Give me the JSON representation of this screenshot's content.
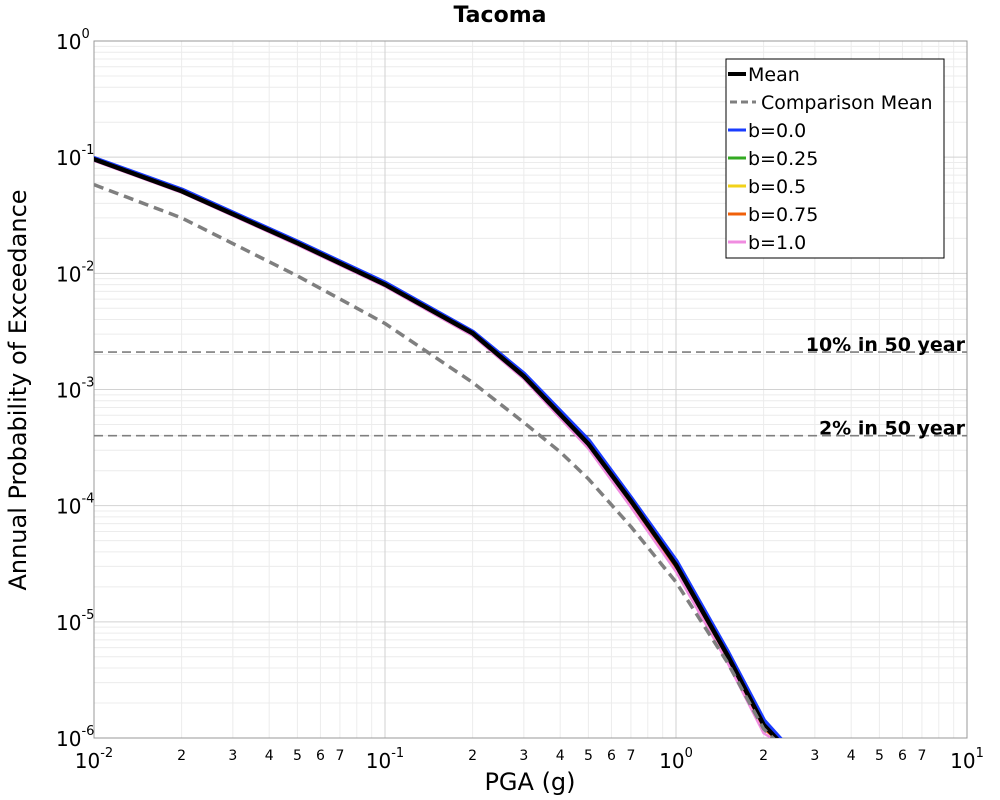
{
  "chart_data": {
    "type": "line",
    "title": "Tacoma",
    "xlabel": "PGA (g)",
    "ylabel": "Annual Probability of Exceedance",
    "xscale": "log",
    "yscale": "log",
    "xlim": [
      0.01,
      10
    ],
    "ylim": [
      1e-06,
      1
    ],
    "grid": true,
    "legend_position": "top-right",
    "x_major_ticks": [
      {
        "value": 0.01,
        "base": "10",
        "exp": "-2"
      },
      {
        "value": 0.1,
        "base": "10",
        "exp": "-1"
      },
      {
        "value": 1,
        "base": "10",
        "exp": "0"
      },
      {
        "value": 10,
        "base": "10",
        "exp": "1"
      }
    ],
    "x_minor_tick_labels": [
      {
        "value": 0.02,
        "label": "2"
      },
      {
        "value": 0.03,
        "label": "3"
      },
      {
        "value": 0.04,
        "label": "4"
      },
      {
        "value": 0.05,
        "label": "5"
      },
      {
        "value": 0.06,
        "label": "6"
      },
      {
        "value": 0.07,
        "label": "7"
      },
      {
        "value": 0.2,
        "label": "2"
      },
      {
        "value": 0.3,
        "label": "3"
      },
      {
        "value": 0.4,
        "label": "4"
      },
      {
        "value": 0.5,
        "label": "5"
      },
      {
        "value": 0.6,
        "label": "6"
      },
      {
        "value": 0.7,
        "label": "7"
      },
      {
        "value": 2,
        "label": "2"
      },
      {
        "value": 3,
        "label": "3"
      },
      {
        "value": 4,
        "label": "4"
      },
      {
        "value": 5,
        "label": "5"
      },
      {
        "value": 6,
        "label": "6"
      },
      {
        "value": 7,
        "label": "7"
      }
    ],
    "y_major_ticks": [
      {
        "value": 1,
        "base": "10",
        "exp": "0"
      },
      {
        "value": 0.1,
        "base": "10",
        "exp": "-1"
      },
      {
        "value": 0.01,
        "base": "10",
        "exp": "-2"
      },
      {
        "value": 0.001,
        "base": "10",
        "exp": "-3"
      },
      {
        "value": 0.0001,
        "base": "10",
        "exp": "-4"
      },
      {
        "value": 1e-05,
        "base": "10",
        "exp": "-5"
      },
      {
        "value": 1e-06,
        "base": "10",
        "exp": "-6"
      }
    ],
    "reference_lines": [
      {
        "label": "10% in 50 year",
        "y": 0.0021,
        "color": "#7f7f7f",
        "dash": "dashed"
      },
      {
        "label": "2% in 50 year",
        "y": 0.0004,
        "color": "#7f7f7f",
        "dash": "dashed"
      }
    ],
    "series": [
      {
        "name": "b=0.0",
        "color": "#1a3cff",
        "style": "solid",
        "x": [
          0.01,
          0.02,
          0.05,
          0.1,
          0.2,
          0.3,
          0.5,
          0.7,
          1.0,
          1.5,
          2.0,
          2.3
        ],
        "y": [
          0.097,
          0.052,
          0.0185,
          0.0082,
          0.0031,
          0.00135,
          0.00036,
          0.000115,
          3.3e-05,
          5.5e-06,
          1.4e-06,
          9.5e-07
        ]
      },
      {
        "name": "b=0.25",
        "color": "#33aa22",
        "style": "solid",
        "x": [
          0.01,
          0.02,
          0.05,
          0.1,
          0.2,
          0.3,
          0.5,
          0.7,
          1.0,
          1.5,
          2.0,
          2.25
        ],
        "y": [
          0.096,
          0.051,
          0.0182,
          0.008,
          0.00305,
          0.0013,
          0.00034,
          0.00011,
          3.1e-05,
          5.2e-06,
          1.3e-06,
          9.5e-07
        ]
      },
      {
        "name": "b=0.5",
        "color": "#f2d21a",
        "style": "solid",
        "x": [
          0.01,
          0.02,
          0.05,
          0.1,
          0.2,
          0.3,
          0.5,
          0.7,
          1.0,
          1.5,
          2.0,
          2.25
        ],
        "y": [
          0.095,
          0.0505,
          0.018,
          0.0079,
          0.003,
          0.00128,
          0.00033,
          0.000105,
          3e-05,
          5e-06,
          1.25e-06,
          9.5e-07
        ]
      },
      {
        "name": "b=0.75",
        "color": "#f0600a",
        "style": "solid",
        "x": [
          0.01,
          0.02,
          0.05,
          0.1,
          0.2,
          0.3,
          0.5,
          0.7,
          1.0,
          1.5,
          2.0,
          2.25
        ],
        "y": [
          0.094,
          0.05,
          0.0178,
          0.0078,
          0.00295,
          0.00126,
          0.00032,
          0.0001,
          2.9e-05,
          4.8e-06,
          1.2e-06,
          9.5e-07
        ]
      },
      {
        "name": "b=1.0",
        "color": "#f08ce0",
        "style": "solid",
        "x": [
          0.01,
          0.02,
          0.05,
          0.1,
          0.2,
          0.3,
          0.5,
          0.7,
          1.0,
          1.5,
          2.0,
          2.2
        ],
        "y": [
          0.093,
          0.0495,
          0.0175,
          0.0077,
          0.0029,
          0.00123,
          0.00031,
          9.7e-05,
          2.7e-05,
          4.5e-06,
          1.1e-06,
          9.5e-07
        ]
      },
      {
        "name": "Mean",
        "color": "#000000",
        "style": "solid",
        "width": "thick",
        "x": [
          0.01,
          0.02,
          0.05,
          0.1,
          0.2,
          0.3,
          0.5,
          0.7,
          1.0,
          1.5,
          2.0,
          2.25
        ],
        "y": [
          0.096,
          0.051,
          0.0182,
          0.008,
          0.00305,
          0.0013,
          0.00034,
          0.00011,
          3.1e-05,
          5.2e-06,
          1.3e-06,
          9.5e-07
        ]
      },
      {
        "name": "Comparison Mean",
        "color": "#7f7f7f",
        "style": "dashed",
        "x": [
          0.01,
          0.02,
          0.05,
          0.1,
          0.2,
          0.3,
          0.4,
          0.5,
          0.7,
          1.0,
          1.5,
          2.0,
          2.2
        ],
        "y": [
          0.058,
          0.03,
          0.0095,
          0.0037,
          0.00115,
          0.00052,
          0.00029,
          0.00017,
          6.6e-05,
          2.2e-05,
          4.5e-06,
          1.2e-06,
          9.5e-07
        ]
      }
    ],
    "legend": [
      {
        "name": "Mean",
        "color": "#000000",
        "style": "solid",
        "width": "thick"
      },
      {
        "name": "Comparison Mean",
        "color": "#7f7f7f",
        "style": "dashed"
      },
      {
        "name": "b=0.0",
        "color": "#1a3cff",
        "style": "solid"
      },
      {
        "name": "b=0.25",
        "color": "#33aa22",
        "style": "solid"
      },
      {
        "name": "b=0.5",
        "color": "#f2d21a",
        "style": "solid"
      },
      {
        "name": "b=0.75",
        "color": "#f0600a",
        "style": "solid"
      },
      {
        "name": "b=1.0",
        "color": "#f08ce0",
        "style": "solid"
      }
    ]
  }
}
